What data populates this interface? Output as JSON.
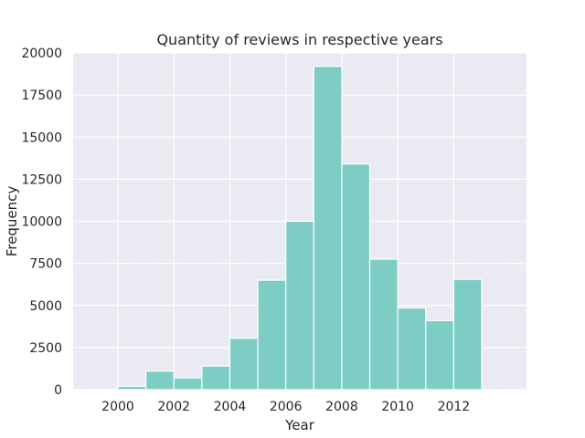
{
  "chart_data": {
    "type": "bar",
    "title": "Quantity of reviews in respective years",
    "xlabel": "Year",
    "ylabel": "Frequency",
    "bin_edges": [
      1999,
      2000,
      2001,
      2002,
      2003,
      2004,
      2005,
      2006,
      2007,
      2008,
      2009,
      2010,
      2011,
      2012,
      2013
    ],
    "values": [
      30,
      200,
      1100,
      700,
      1400,
      3050,
      6500,
      10000,
      19200,
      13400,
      7750,
      4850,
      4100,
      6550
    ],
    "xlim": [
      1998.4,
      2014.6
    ],
    "ylim": [
      0,
      20000
    ],
    "xticks": [
      2000,
      2002,
      2004,
      2006,
      2008,
      2010,
      2012
    ],
    "xtick_labels": [
      "2000",
      "2002",
      "2004",
      "2006",
      "2008",
      "2010",
      "2012"
    ],
    "yticks": [
      0,
      2500,
      5000,
      7500,
      10000,
      12500,
      15000,
      17500,
      20000
    ],
    "ytick_labels": [
      "0",
      "2500",
      "5000",
      "7500",
      "10000",
      "12500",
      "15000",
      "17500",
      "20000"
    ],
    "grid": true,
    "colors": {
      "bar": "#7dcdc4",
      "background": "#eaeaf2",
      "grid": "#ffffff"
    }
  }
}
